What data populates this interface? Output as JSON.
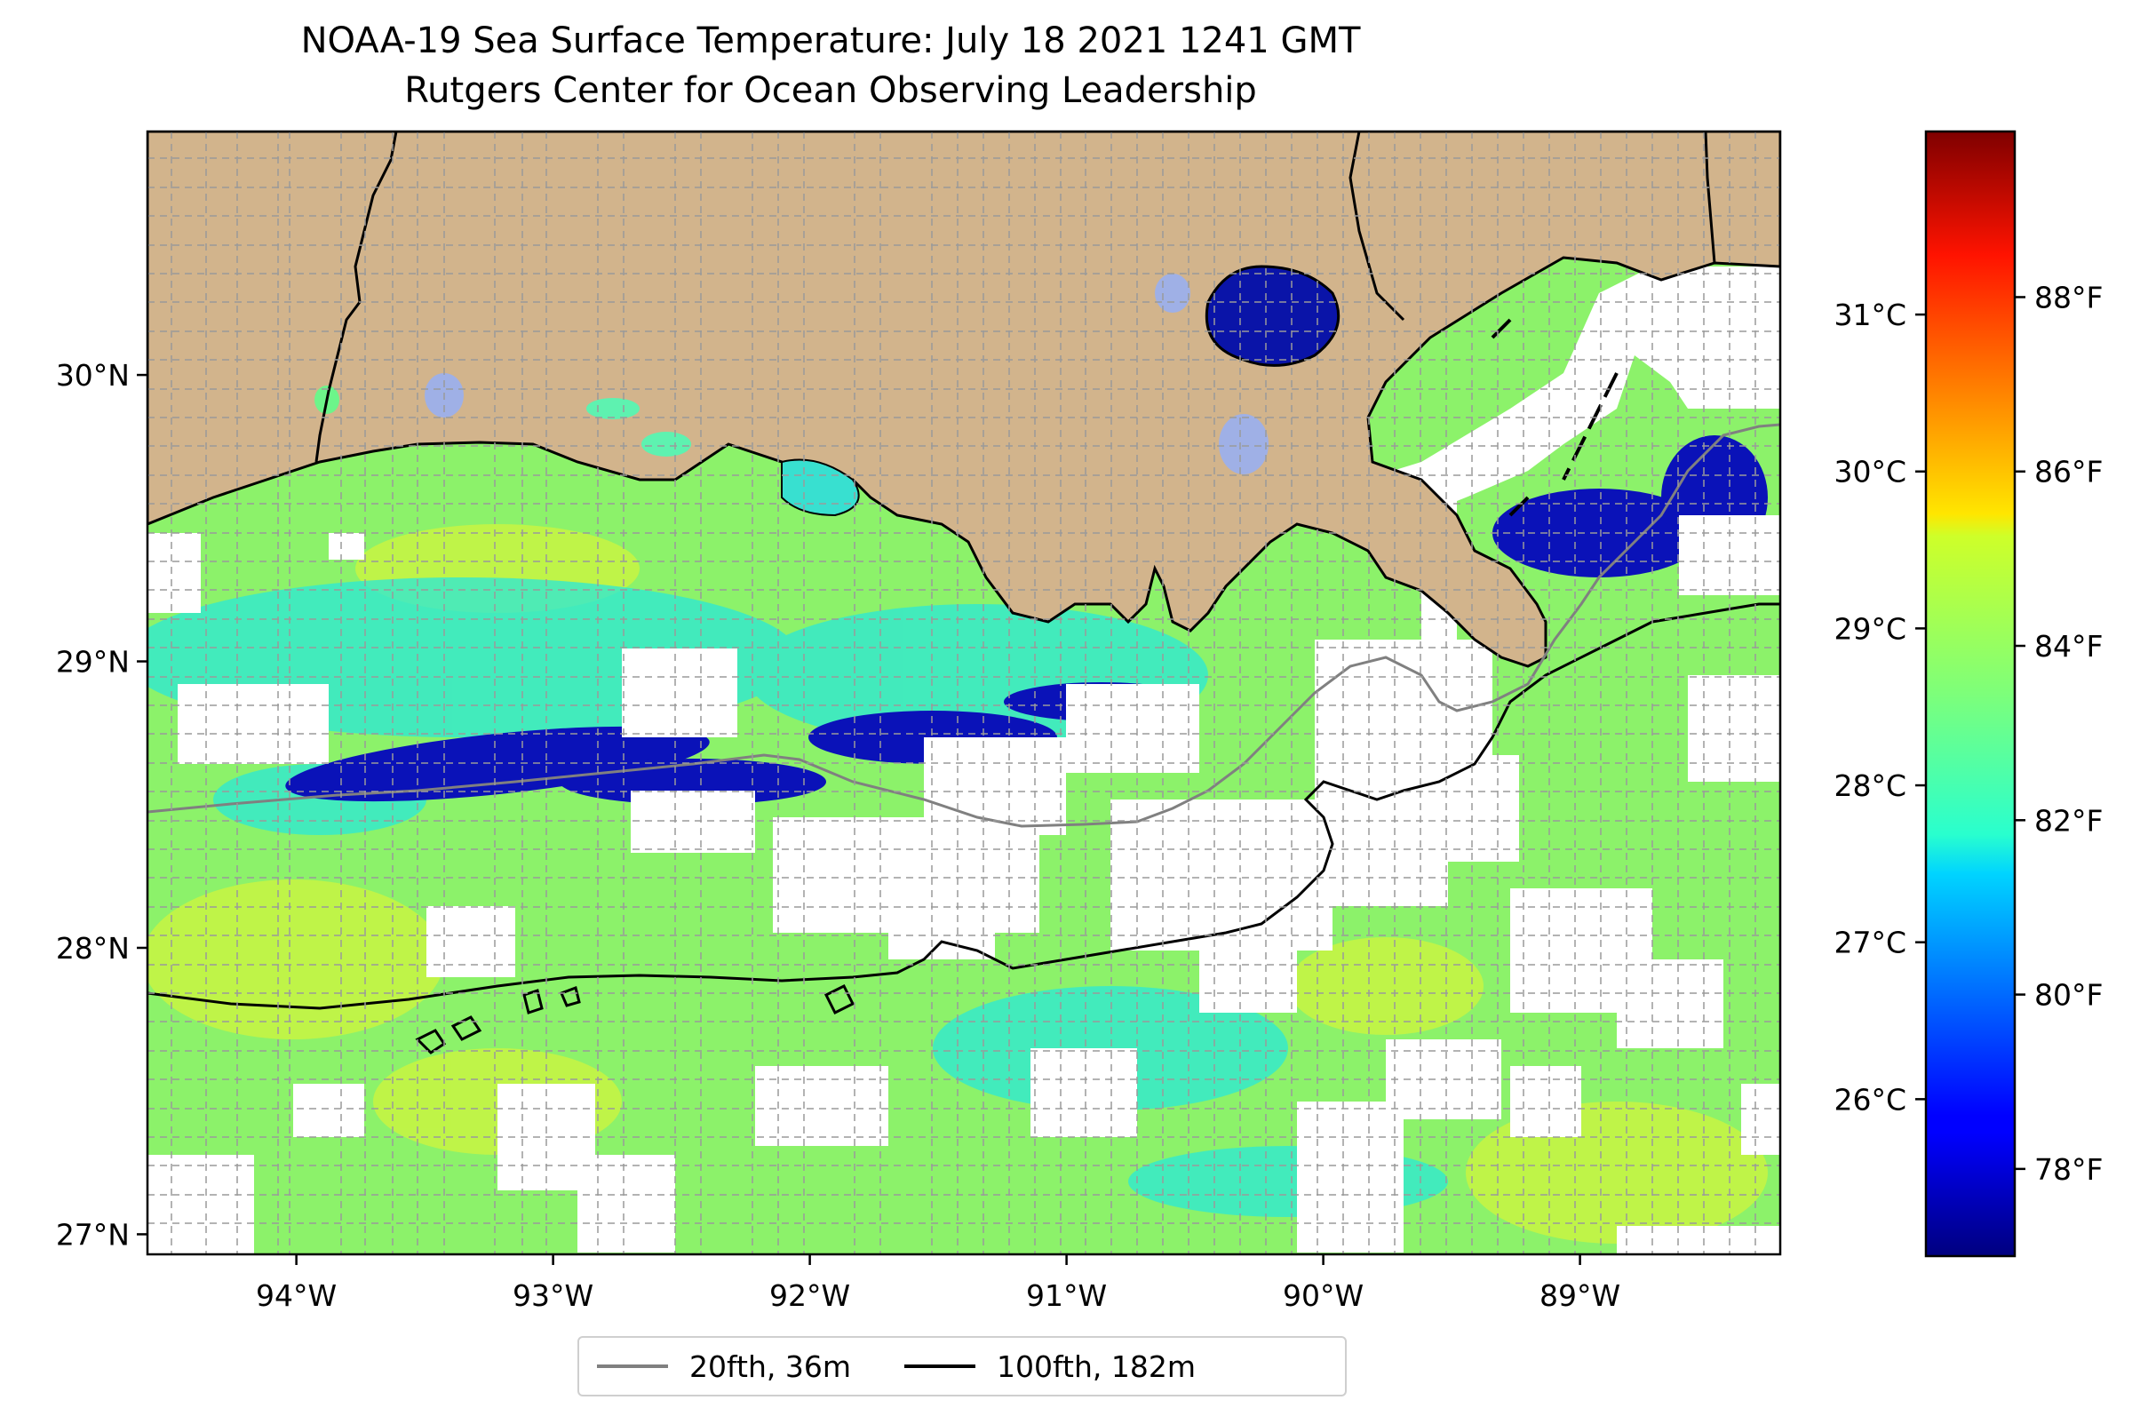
{
  "title_line1": "NOAA-19 Sea Surface Temperature: July 18 2021 1241 GMT",
  "title_line2": "Rutgers Center for Ocean Observing Leadership",
  "map": {
    "lon_ticks": [
      {
        "value": -94,
        "label": "94°W"
      },
      {
        "value": -93,
        "label": "93°W"
      },
      {
        "value": -92,
        "label": "92°W"
      },
      {
        "value": -91,
        "label": "91°W"
      },
      {
        "value": -90,
        "label": "90°W"
      },
      {
        "value": -89,
        "label": "89°W"
      }
    ],
    "lat_ticks": [
      {
        "value": 27,
        "label": "27°N"
      },
      {
        "value": 28,
        "label": "28°N"
      },
      {
        "value": 29,
        "label": "29°N"
      },
      {
        "value": 30,
        "label": "30°N"
      }
    ],
    "lon_range": [
      -94.58,
      -88.22
    ],
    "lat_range": [
      26.93,
      30.85
    ],
    "gridlines": "dashed",
    "land_color": "#d2b48c",
    "colormap": "jet"
  },
  "colorbar": {
    "celsius_ticks": [
      {
        "value": 26,
        "label": "26°C"
      },
      {
        "value": 27,
        "label": "27°C"
      },
      {
        "value": 28,
        "label": "28°C"
      },
      {
        "value": 29,
        "label": "29°C"
      },
      {
        "value": 30,
        "label": "30°C"
      },
      {
        "value": 31,
        "label": "31°C"
      }
    ],
    "fahrenheit_ticks": [
      {
        "value": 78,
        "label": "78°F"
      },
      {
        "value": 80,
        "label": "80°F"
      },
      {
        "value": 82,
        "label": "82°F"
      },
      {
        "value": 84,
        "label": "84°F"
      },
      {
        "value": 86,
        "label": "86°F"
      },
      {
        "value": 88,
        "label": "88°F"
      }
    ],
    "range_f": [
      77.0,
      89.9
    ]
  },
  "legend": {
    "items": [
      {
        "label": "20fth, 36m",
        "color": "#808080"
      },
      {
        "label": "100fth, 182m",
        "color": "#000000"
      }
    ]
  }
}
